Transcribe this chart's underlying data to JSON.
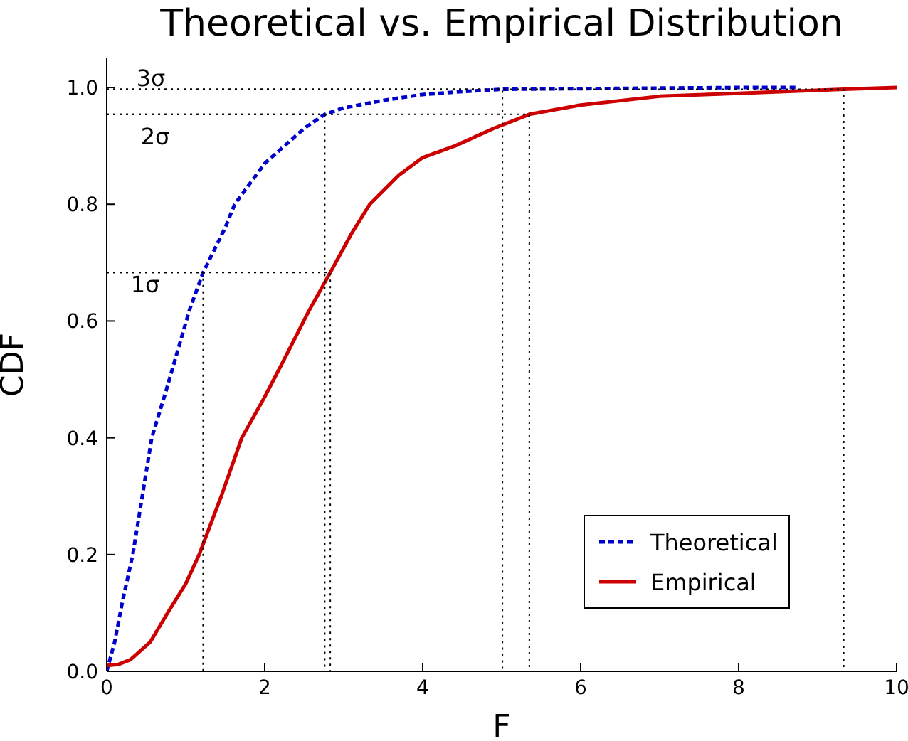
{
  "chart_data": {
    "type": "line",
    "title": "Theoretical vs. Empirical Distribution",
    "xlabel": "F",
    "ylabel": "CDF",
    "xlim": [
      0,
      10
    ],
    "xticks": [
      0,
      2,
      4,
      6,
      8,
      10
    ],
    "ylim": [
      0,
      1.05
    ],
    "yticks": [
      {
        "value": 0,
        "label": "0.0"
      },
      {
        "value": 0.2,
        "label": "0.2"
      },
      {
        "value": 0.4,
        "label": "0.4"
      },
      {
        "value": 0.6,
        "label": "0.6"
      },
      {
        "value": 0.8,
        "label": "0.8"
      },
      {
        "value": 1,
        "label": "1.0"
      }
    ],
    "grid": false,
    "legend": "bottom right",
    "marker": "none",
    "series": [
      {
        "name": "Theoretical",
        "color": "#0000cc",
        "line_style": "dashed",
        "x": [
          0,
          0.1,
          0.2,
          0.33,
          0.45,
          0.57,
          0.75,
          0.9,
          1.05,
          1.22,
          1.5,
          1.62,
          2.0,
          2.25,
          2.5,
          2.76,
          3.0,
          3.5,
          4.0,
          4.5,
          5.01,
          6,
          7,
          8,
          8.75
        ],
        "values": [
          0,
          0.05,
          0.12,
          0.2,
          0.3,
          0.4,
          0.48,
          0.55,
          0.62,
          0.683,
          0.76,
          0.8,
          0.87,
          0.9,
          0.93,
          0.954,
          0.965,
          0.978,
          0.988,
          0.993,
          0.997,
          0.998,
          0.999,
          1.0,
          1.0
        ]
      },
      {
        "name": "Empirical",
        "color": "#cc0000",
        "line_style": "solid",
        "x": [
          0,
          0.15,
          0.3,
          0.55,
          0.77,
          1.0,
          1.17,
          1.45,
          1.71,
          2.0,
          2.28,
          2.55,
          2.83,
          3.1,
          3.33,
          3.7,
          4.0,
          4.41,
          4.9,
          5.35,
          6.0,
          7.0,
          8.0,
          9.33,
          10
        ],
        "values": [
          0.01,
          0.012,
          0.02,
          0.05,
          0.1,
          0.15,
          0.2,
          0.3,
          0.4,
          0.47,
          0.543,
          0.615,
          0.683,
          0.75,
          0.8,
          0.85,
          0.88,
          0.9,
          0.93,
          0.954,
          0.97,
          0.985,
          0.99,
          0.997,
          1.0
        ]
      },
      {
        "color": "#000000",
        "line_style": "dotted",
        "x": [
          0,
          1.22,
          1.22
        ],
        "values": [
          0.683,
          0.683,
          0
        ]
      },
      {
        "color": "#000000",
        "line_style": "dotted",
        "x": [
          0,
          2.76,
          2.76
        ],
        "values": [
          0.954,
          0.954,
          0
        ]
      },
      {
        "color": "#000000",
        "line_style": "dotted",
        "x": [
          0,
          5.01,
          5.01
        ],
        "values": [
          0.997,
          0.997,
          0
        ]
      },
      {
        "color": "#000000",
        "line_style": "dotted",
        "x": [
          0,
          2.83,
          2.83
        ],
        "values": [
          0.683,
          0.683,
          0
        ]
      },
      {
        "color": "#000000",
        "line_style": "dotted",
        "x": [
          0,
          5.35,
          5.35
        ],
        "values": [
          0.954,
          0.954,
          0
        ]
      },
      {
        "color": "#000000",
        "line_style": "dotted",
        "x": [
          0,
          9.33,
          9.33
        ],
        "values": [
          0.997,
          0.997,
          0
        ]
      }
    ],
    "annotations": [
      "1σ",
      "2σ",
      "3σ"
    ]
  }
}
